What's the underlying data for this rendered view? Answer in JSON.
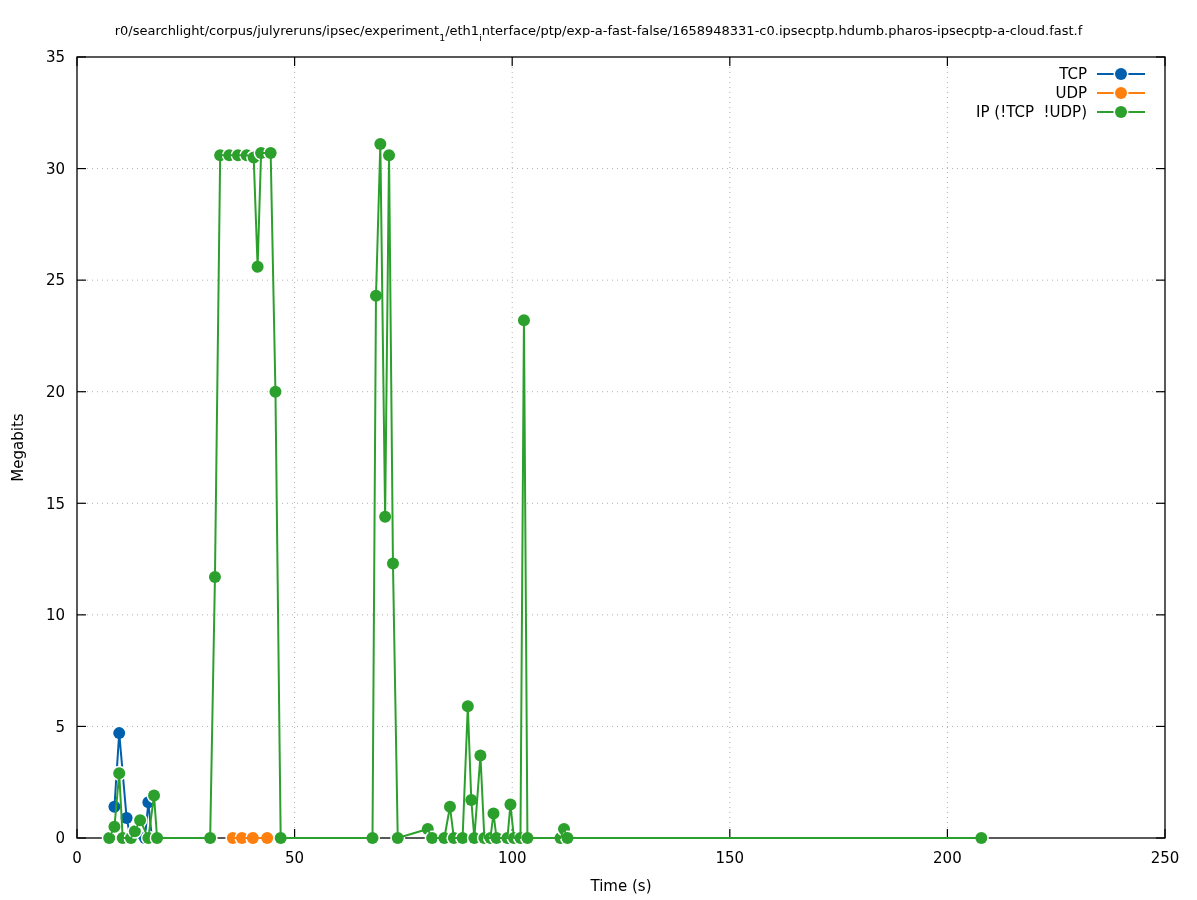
{
  "chart_data": {
    "type": "line",
    "title": "r0/searchlight/corpus/julyreruns/ipsec/experiment$_{1}$/eth1$_{i}$nterface/ptp/exp-a-fast-false/1658948331-c0.ipsecptp.hdumb.pharos-ipsecptp-a-cloud.fast.f",
    "xlabel": "Time (s)",
    "ylabel": "Megabits",
    "xlim": [
      0,
      250
    ],
    "ylim": [
      0,
      35
    ],
    "xticks": [
      0,
      50,
      100,
      150,
      200,
      250
    ],
    "yticks": [
      0,
      5,
      10,
      15,
      20,
      25,
      30,
      35
    ],
    "grid": true,
    "legend": "top right",
    "marker": "circle",
    "line_style": "solid",
    "series": [
      {
        "name": "TCP",
        "color": "#0060ad",
        "x": [
          8.6,
          9.7,
          11.4,
          12.3,
          15.6,
          16.4,
          17.2
        ],
        "values": [
          1.4,
          4.7,
          0.9,
          0,
          0,
          1.6,
          0
        ]
      },
      {
        "name": "UDP",
        "color": "#ff7f0e",
        "x": [
          35.8,
          37.9,
          40.4,
          43.7
        ],
        "values": [
          0,
          0,
          0,
          0
        ]
      },
      {
        "name": "IP (!TCP  !UDP)",
        "color": "#2ca02c",
        "x": [
          7.4,
          8.6,
          9.7,
          10.5,
          12.4,
          13.3,
          14.5,
          16.4,
          17.7,
          18.4,
          30.6,
          31.7,
          32.9,
          35.0,
          37.0,
          39.0,
          40.6,
          41.5,
          42.3,
          44.5,
          45.6,
          46.8,
          67.9,
          68.7,
          69.7,
          70.8,
          71.7,
          72.6,
          73.7,
          80.6,
          81.6,
          84.4,
          85.7,
          86.6,
          88.6,
          89.8,
          90.6,
          91.3,
          92.7,
          93.6,
          95.0,
          95.7,
          96.4,
          98.9,
          99.6,
          100.4,
          101.9,
          102.7,
          103.5,
          111.1,
          111.9,
          112.7,
          207.8
        ],
        "values": [
          0,
          0.5,
          2.9,
          0,
          0,
          0.3,
          0.8,
          0,
          1.9,
          0,
          0,
          11.7,
          30.6,
          30.6,
          30.6,
          30.6,
          30.5,
          25.6,
          30.7,
          30.7,
          20.0,
          0,
          0,
          24.3,
          31.1,
          14.4,
          30.6,
          12.3,
          0,
          0.4,
          0,
          0,
          1.4,
          0,
          0,
          5.9,
          1.7,
          0,
          3.7,
          0,
          0,
          1.1,
          0,
          0,
          1.5,
          0,
          0,
          23.2,
          0,
          0,
          0.4,
          0,
          0
        ]
      }
    ]
  }
}
